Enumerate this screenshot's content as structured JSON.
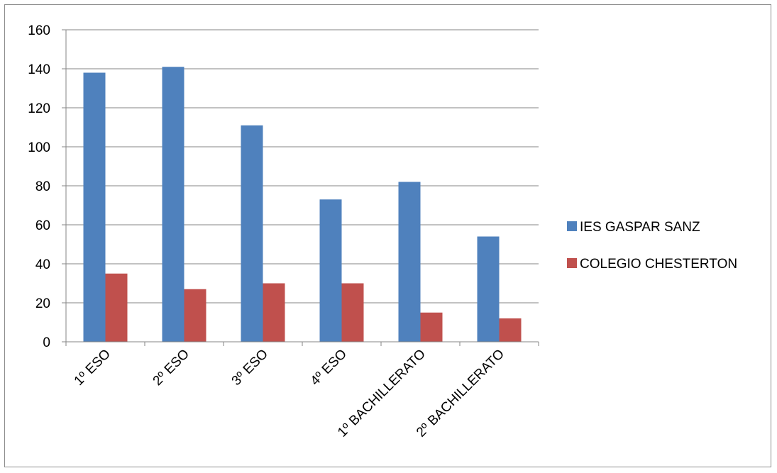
{
  "chart_data": {
    "type": "bar",
    "categories": [
      "1º ESO",
      "2º ESO",
      "3º ESO",
      "4º ESO",
      "1º BACHILLERATO",
      "2º BACHILLERATO"
    ],
    "series": [
      {
        "name": "IES GASPAR SANZ",
        "values": [
          138,
          141,
          111,
          73,
          82,
          54
        ],
        "color": "#4f81bd"
      },
      {
        "name": "COLEGIO CHESTERTON",
        "values": [
          35,
          27,
          30,
          30,
          15,
          12
        ],
        "color": "#c0504d"
      }
    ],
    "title": "",
    "xlabel": "",
    "ylabel": "",
    "ylim": [
      0,
      160
    ],
    "yticks": [
      0,
      20,
      40,
      60,
      80,
      100,
      120,
      140,
      160
    ],
    "grid": true,
    "legend_position": "right"
  }
}
